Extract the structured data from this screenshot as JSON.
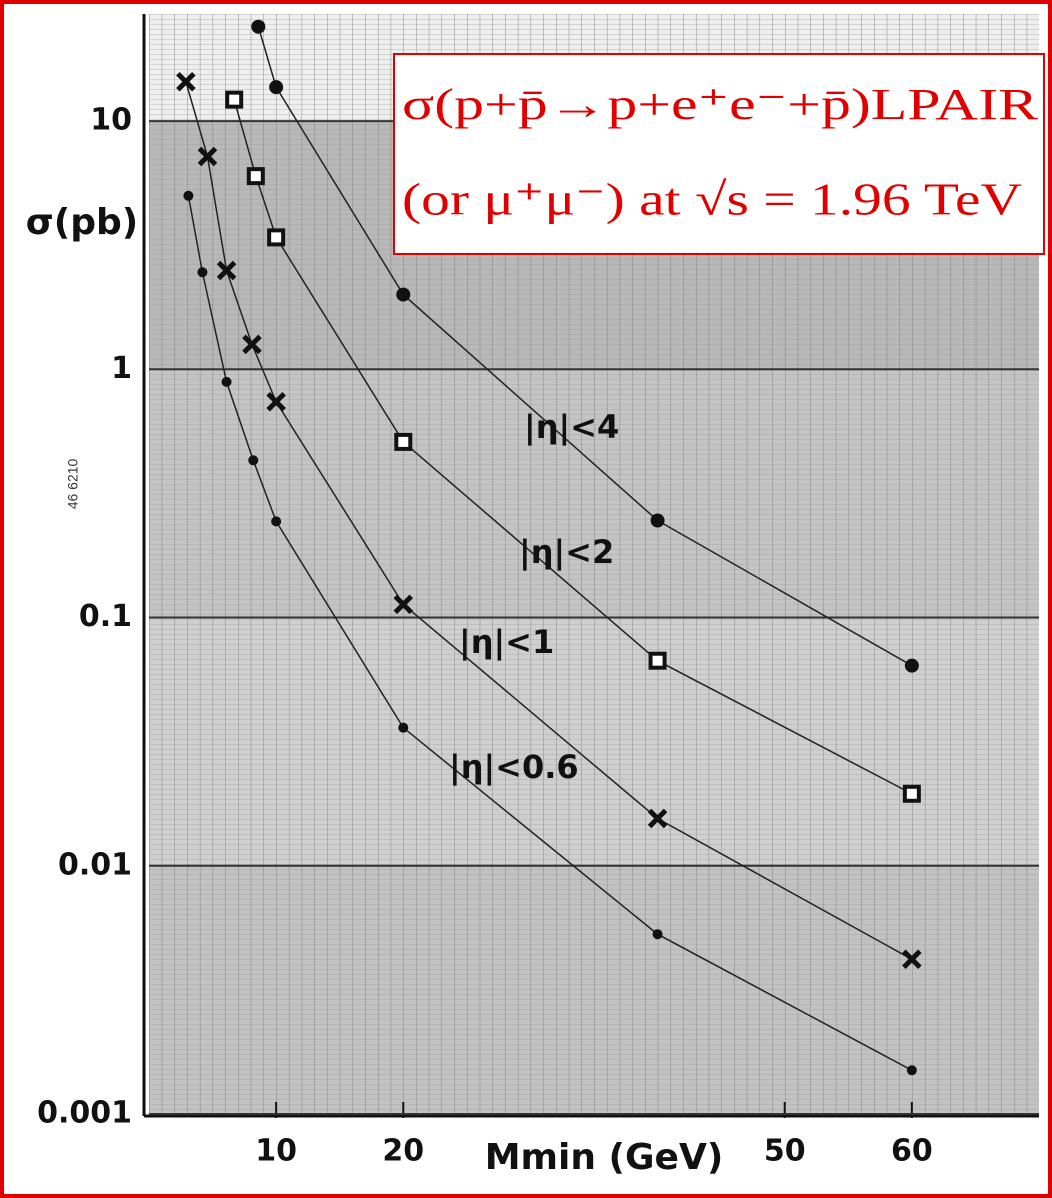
{
  "chart_data": {
    "type": "scatter",
    "log_y": true,
    "title": "σ(p+p̄→p+e⁺e⁻+p̄)LPAIR",
    "subtitle": "(or μ⁺μ⁻) at √s = 1.96 TeV",
    "xlabel": "Mmin (GeV)",
    "ylabel": "σ(pb)",
    "annotation": "46 6210",
    "xlim": [
      0,
      70
    ],
    "ylim": [
      0.001,
      27
    ],
    "xticks": [
      10,
      20,
      50,
      60
    ],
    "yticks": [
      10,
      1,
      0.1,
      0.01,
      0.001
    ],
    "series": [
      {
        "name": "|η|<4",
        "marker": "circle",
        "color": "#111",
        "x": [
          8.6,
          10,
          20,
          40,
          60
        ],
        "values": [
          24,
          13.7,
          2.0,
          0.246,
          0.064
        ]
      },
      {
        "name": "|η|<2",
        "marker": "square",
        "color": "#111",
        "x": [
          6.7,
          8.4,
          10,
          20,
          40,
          60
        ],
        "values": [
          12.2,
          6.0,
          3.4,
          0.51,
          0.067,
          0.0195
        ]
      },
      {
        "name": "|η|<1",
        "marker": "cross",
        "color": "#111",
        "x": [
          2.9,
          4.6,
          6.1,
          8.1,
          10,
          20,
          40,
          60
        ],
        "values": [
          14.4,
          7.2,
          2.5,
          1.26,
          0.74,
          0.113,
          0.0155,
          0.0042
        ]
      },
      {
        "name": "|η|<0.6",
        "marker": "dot",
        "color": "#111",
        "x": [
          3.1,
          4.2,
          6.1,
          8.2,
          10,
          20,
          40,
          60
        ],
        "values": [
          5.0,
          2.46,
          0.89,
          0.43,
          0.244,
          0.036,
          0.0053,
          0.0015
        ]
      }
    ]
  }
}
